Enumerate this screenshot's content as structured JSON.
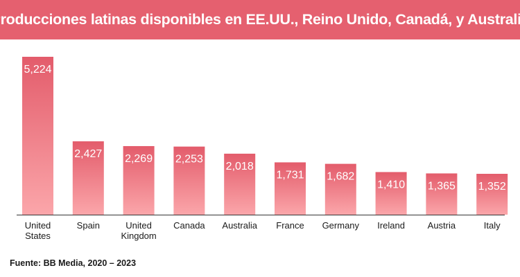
{
  "colors": {
    "banner": "#e5606f",
    "bar_top": "#e35c6b",
    "bar_bottom": "#fba6aa",
    "axis": "#333333"
  },
  "chart_data": {
    "type": "bar",
    "title": "Producciones latinas disponibles en EE.UU., Reino Unido, Canadá, y Australia",
    "categories": [
      [
        "United",
        "States"
      ],
      [
        "Spain"
      ],
      [
        "United",
        "Kingdom"
      ],
      [
        "Canada"
      ],
      [
        "Australia"
      ],
      [
        "France"
      ],
      [
        "Germany"
      ],
      [
        "Ireland"
      ],
      [
        "Austria"
      ],
      [
        "Italy"
      ]
    ],
    "values": [
      5224,
      2427,
      2269,
      2253,
      2018,
      1731,
      1682,
      1410,
      1365,
      1352
    ],
    "value_labels": [
      "5,224",
      "2,427",
      "2,269",
      "2,253",
      "2,018",
      "1,731",
      "1,682",
      "1,410",
      "1,365",
      "1,352"
    ],
    "ylim": [
      0,
      5224
    ],
    "grid": false,
    "legend": "none"
  },
  "source": "Fuente: BB Media, 2020 – 2023"
}
